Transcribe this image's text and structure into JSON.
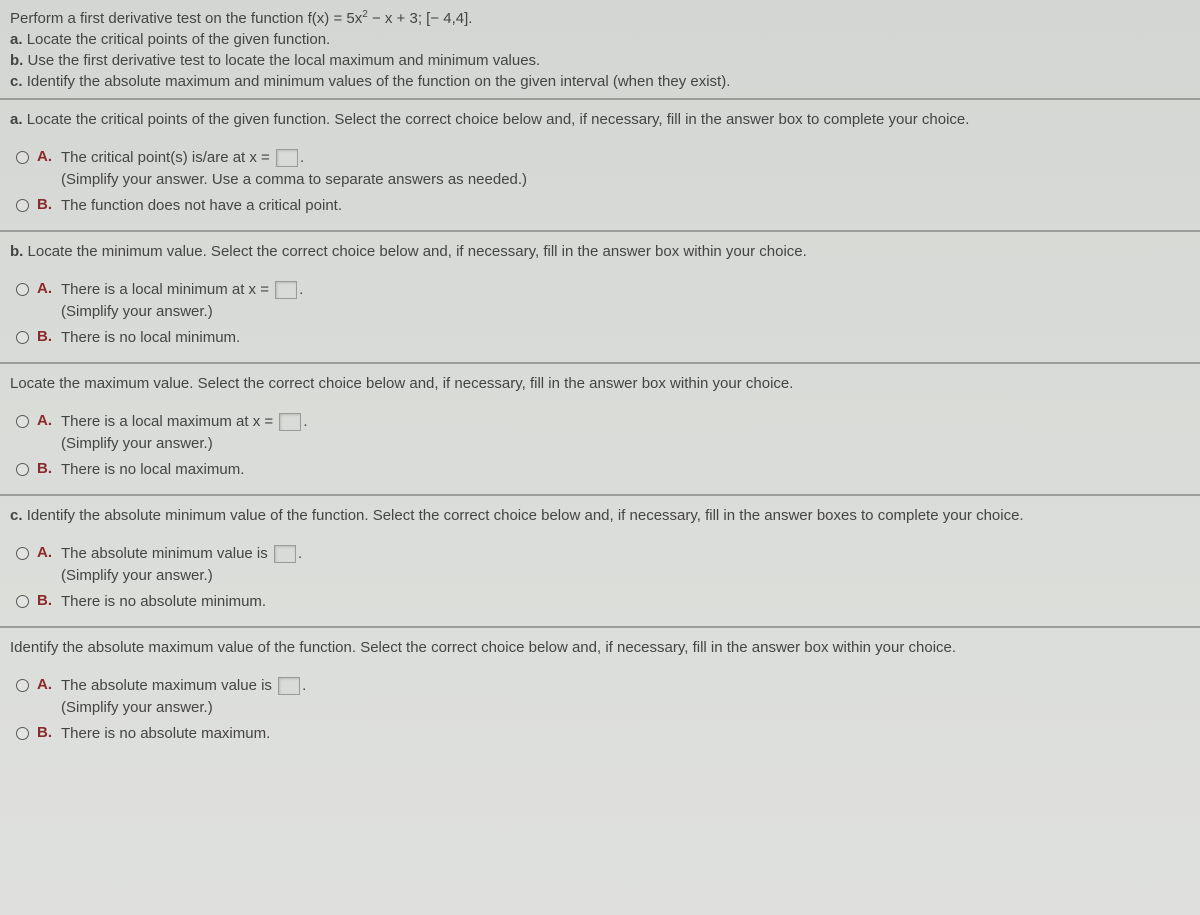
{
  "intro": {
    "line1_pre": "Perform a first derivative test on the function f(x) = 5x",
    "line1_sup": "2",
    "line1_post": " − x + 3; [− 4,4].",
    "a": "Locate the critical points of the given function.",
    "b": "Use the first derivative test to locate the local maximum and minimum values.",
    "c": "Identify the absolute maximum and minimum values of the function on the given interval (when they exist)."
  },
  "parts": {
    "a": {
      "prompt_prefix": "a.",
      "prompt": "Locate the critical points of the given function. Select the correct choice below and, if necessary, fill in the answer box to complete your choice.",
      "optA_main": "The critical point(s) is/are at x =",
      "optA_post": ".",
      "optA_sub": "(Simplify your answer. Use a comma to separate answers as needed.)",
      "optB_main": "The function does not have a critical point."
    },
    "b_min": {
      "prompt_prefix": "b.",
      "prompt": "Locate the minimum value. Select the correct choice below and, if necessary, fill in the answer box within your choice.",
      "optA_main": "There is a local minimum at x =",
      "optA_post": ".",
      "optA_sub": "(Simplify your answer.)",
      "optB_main": "There is no local minimum."
    },
    "b_max": {
      "prompt": "Locate the maximum value. Select the correct choice below and, if necessary, fill in the answer box within your choice.",
      "optA_main": "There is a local maximum at x =",
      "optA_post": ".",
      "optA_sub": "(Simplify your answer.)",
      "optB_main": "There is no local maximum."
    },
    "c_min": {
      "prompt_prefix": "c.",
      "prompt": "Identify the absolute minimum value of the function. Select the correct choice below and, if necessary, fill in the answer boxes to complete your choice.",
      "optA_main": "The absolute minimum value is",
      "optA_post": ".",
      "optA_sub": "(Simplify your answer.)",
      "optB_main": "There is no absolute minimum."
    },
    "c_max": {
      "prompt": "Identify the absolute maximum value of the function. Select the correct choice below and, if necessary, fill in the answer box within your choice.",
      "optA_main": "The absolute maximum value is",
      "optA_post": ".",
      "optA_sub": "(Simplify your answer.)",
      "optB_main": "There is no absolute maximum."
    }
  },
  "letters": {
    "A": "A.",
    "B": "B.",
    "a": "a.",
    "b": "b.",
    "c": "c."
  },
  "style": {
    "body_bg_top": "#d4d6d3",
    "body_bg_bottom": "#dfe0de",
    "text_color": "#444444",
    "letter_color": "#8a2a2a",
    "divider_color": "#9b9d9b",
    "answer_box_bg": "#d9dbd8",
    "answer_box_border": "#9a9a9a",
    "font_size_body": 15,
    "radio_size": 13
  }
}
